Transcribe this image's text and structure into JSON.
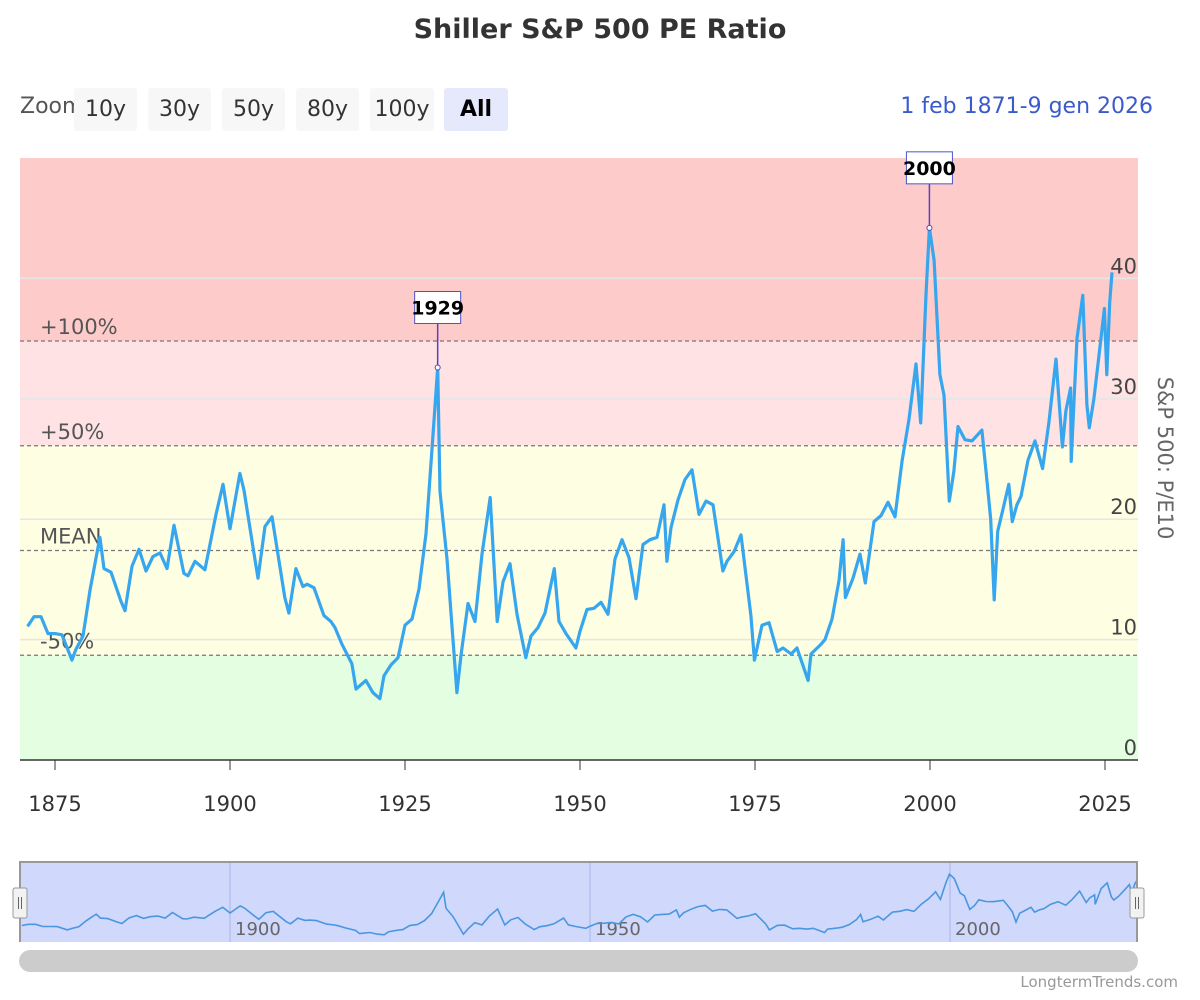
{
  "title": "Shiller S&P 500 PE Ratio",
  "toolbar": {
    "zoom_label": "Zoom",
    "buttons": [
      "10y",
      "30y",
      "50y",
      "80y",
      "100y",
      "All"
    ],
    "selected": "All",
    "range_from": "1 feb 1871",
    "range_to": "9 gen 2026"
  },
  "credit": "LongtermTrends.com",
  "colors": {
    "line": "#36a6ee",
    "band_red": "#fecbcb",
    "band_pink": "#fee2e4",
    "band_yellow": "#fefee3",
    "band_green": "#e3fee0",
    "navigator_fill": "#d0d8fc"
  },
  "chart_data": {
    "type": "line",
    "title": "Shiller S&P 500 PE Ratio",
    "ylabel": "S&P 500: P/E10",
    "ylim": [
      0,
      50
    ],
    "yticks": [
      "0",
      "10",
      "20",
      "30",
      "40"
    ],
    "xticks": [
      "1875",
      "1900",
      "1925",
      "1950",
      "1975",
      "2000",
      "2025"
    ],
    "navigator_ticks": [
      "1900",
      "1950",
      "2000"
    ],
    "grid": true,
    "reference_lines": [
      {
        "label": "+100%",
        "value": 34.8
      },
      {
        "label": "+50%",
        "value": 26.1
      },
      {
        "label": "MEAN",
        "value": 17.4
      },
      {
        "label": "-50%",
        "value": 8.7
      }
    ],
    "annotations": [
      {
        "label": "1929",
        "x": "1929-09",
        "y": 32.6
      },
      {
        "label": "2000",
        "x": "1999-12",
        "y": 44.2
      }
    ],
    "x": [
      "1871-02",
      "1872-01",
      "1873-01",
      "1874-01",
      "1875-01",
      "1876-01",
      "1877-06",
      "1878-01",
      "1879-01",
      "1880-01",
      "1881-06",
      "1882-01",
      "1883-01",
      "1884-06",
      "1885-01",
      "1886-01",
      "1887-01",
      "1888-01",
      "1889-01",
      "1890-01",
      "1891-01",
      "1892-01",
      "1893-06",
      "1894-01",
      "1895-01",
      "1896-06",
      "1897-01",
      "1898-01",
      "1899-01",
      "1900-01",
      "1901-06",
      "1902-01",
      "1903-06",
      "1904-01",
      "1905-01",
      "1906-01",
      "1907-11",
      "1908-06",
      "1909-06",
      "1910-06",
      "1911-01",
      "1912-01",
      "1913-06",
      "1914-06",
      "1915-01",
      "1916-01",
      "1917-06",
      "1918-01",
      "1919-06",
      "1920-06",
      "1921-06",
      "1922-01",
      "1923-01",
      "1924-01",
      "1925-01",
      "1926-01",
      "1927-01",
      "1928-01",
      "1929-01",
      "1929-09",
      "1930-01",
      "1931-01",
      "1932-06",
      "1933-01",
      "1934-01",
      "1935-01",
      "1936-01",
      "1937-03",
      "1938-03",
      "1939-01",
      "1940-01",
      "1941-01",
      "1942-04",
      "1943-01",
      "1944-01",
      "1945-01",
      "1946-05",
      "1947-01",
      "1948-01",
      "1949-06",
      "1950-01",
      "1951-01",
      "1952-01",
      "1953-01",
      "1954-01",
      "1955-01",
      "1956-01",
      "1957-01",
      "1958-01",
      "1959-01",
      "1960-01",
      "1961-01",
      "1962-01",
      "1962-06",
      "1963-01",
      "1964-01",
      "1965-01",
      "1966-01",
      "1967-01",
      "1968-01",
      "1969-01",
      "1970-06",
      "1971-01",
      "1972-01",
      "1973-01",
      "1974-06",
      "1974-12",
      "1976-01",
      "1977-01",
      "1978-03",
      "1979-01",
      "1980-03",
      "1981-01",
      "1982-08",
      "1983-01",
      "1984-06",
      "1985-01",
      "1986-01",
      "1987-01",
      "1987-08",
      "1987-12",
      "1989-01",
      "1990-01",
      "1990-10",
      "1992-01",
      "1993-01",
      "1994-01",
      "1995-01",
      "1996-01",
      "1997-01",
      "1998-01",
      "1998-09",
      "1999-06",
      "1999-12",
      "2000-08",
      "2001-06",
      "2002-01",
      "2002-10",
      "2003-06",
      "2004-01",
      "2005-01",
      "2006-01",
      "2007-06",
      "2008-01",
      "2008-09",
      "2009-03",
      "2009-09",
      "2010-06",
      "2011-04",
      "2011-10",
      "2012-06",
      "2013-01",
      "2014-01",
      "2015-01",
      "2016-02",
      "2017-01",
      "2018-01",
      "2018-12",
      "2019-06",
      "2020-02",
      "2020-03",
      "2020-08",
      "2021-01",
      "2021-11",
      "2022-06",
      "2022-10",
      "2023-06",
      "2024-01",
      "2024-12",
      "2025-04",
      "2025-09",
      "2026-01"
    ],
    "values": [
      11.1,
      11.9,
      11.9,
      10.5,
      10.5,
      10.4,
      8.3,
      9.2,
      10.3,
      14.1,
      18.5,
      15.9,
      15.6,
      13.2,
      12.4,
      16.1,
      17.5,
      15.7,
      16.9,
      17.2,
      15.9,
      19.5,
      15.5,
      15.3,
      16.5,
      15.8,
      17.5,
      20.4,
      22.9,
      19.2,
      23.8,
      22.4,
      17.2,
      15.1,
      19.4,
      20.2,
      13.5,
      12.2,
      15.9,
      14.4,
      14.6,
      14.3,
      12.0,
      11.5,
      11.0,
      9.6,
      8.0,
      5.9,
      6.6,
      5.6,
      5.1,
      7.0,
      7.9,
      8.5,
      11.2,
      11.7,
      14.2,
      18.8,
      27.0,
      32.6,
      22.3,
      16.7,
      5.6,
      8.7,
      13.0,
      11.5,
      17.1,
      21.8,
      11.5,
      14.8,
      16.3,
      12.1,
      8.5,
      10.3,
      11.0,
      12.2,
      15.9,
      11.5,
      10.5,
      9.3,
      10.7,
      12.5,
      12.6,
      13.1,
      12.1,
      16.7,
      18.3,
      16.8,
      13.4,
      17.9,
      18.3,
      18.5,
      21.2,
      16.5,
      19.3,
      21.6,
      23.3,
      24.1,
      20.4,
      21.5,
      21.2,
      15.7,
      16.5,
      17.3,
      18.7,
      12.0,
      8.3,
      11.2,
      11.4,
      9.0,
      9.3,
      8.8,
      9.3,
      6.6,
      8.8,
      9.6,
      10.0,
      11.7,
      14.9,
      18.3,
      13.5,
      15.1,
      17.1,
      14.7,
      19.8,
      20.3,
      21.4,
      20.2,
      24.8,
      28.3,
      32.9,
      28.0,
      38.5,
      44.2,
      41.5,
      32.0,
      30.3,
      21.5,
      24.0,
      27.7,
      26.6,
      26.5,
      27.4,
      24.0,
      20.0,
      13.3,
      19.0,
      20.8,
      22.9,
      19.8,
      21.2,
      21.9,
      24.9,
      26.5,
      24.2,
      28.1,
      33.3,
      26.0,
      29.0,
      30.9,
      24.8,
      30.0,
      35.0,
      38.6,
      29.5,
      27.6,
      30.0,
      32.9,
      37.5,
      32.0,
      38.0,
      40.5
    ]
  }
}
